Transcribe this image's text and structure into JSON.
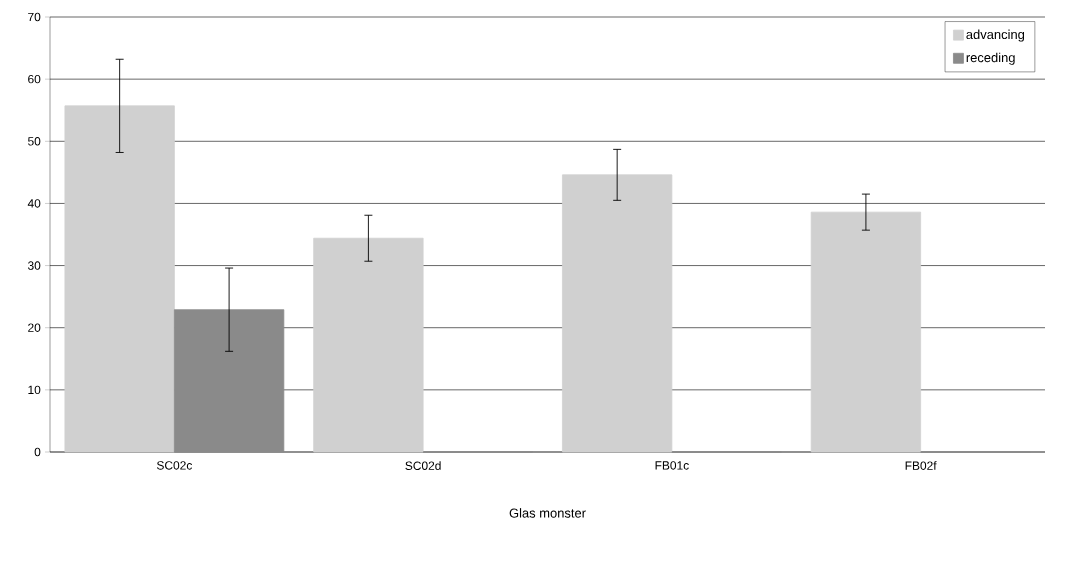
{
  "chart_data": {
    "type": "bar",
    "xlabel": "Glas monster",
    "categories": [
      "SC02c",
      "SC02d",
      "FB01c",
      "FB02f"
    ],
    "series": [
      {
        "name": "advancing",
        "color": "#d0d0d0",
        "values": [
          55.7,
          34.4,
          44.6,
          38.6
        ],
        "errors": [
          7.5,
          3.7,
          4.1,
          2.9
        ]
      },
      {
        "name": "receding",
        "color": "#8a8a8a",
        "values": [
          22.9,
          0,
          0,
          0
        ],
        "errors": [
          6.7,
          null,
          null,
          null
        ]
      }
    ],
    "ylim": [
      0,
      70
    ],
    "yticks": [
      0,
      10,
      20,
      30,
      40,
      50,
      60,
      70
    ],
    "grid": "y",
    "legend": "top right"
  }
}
